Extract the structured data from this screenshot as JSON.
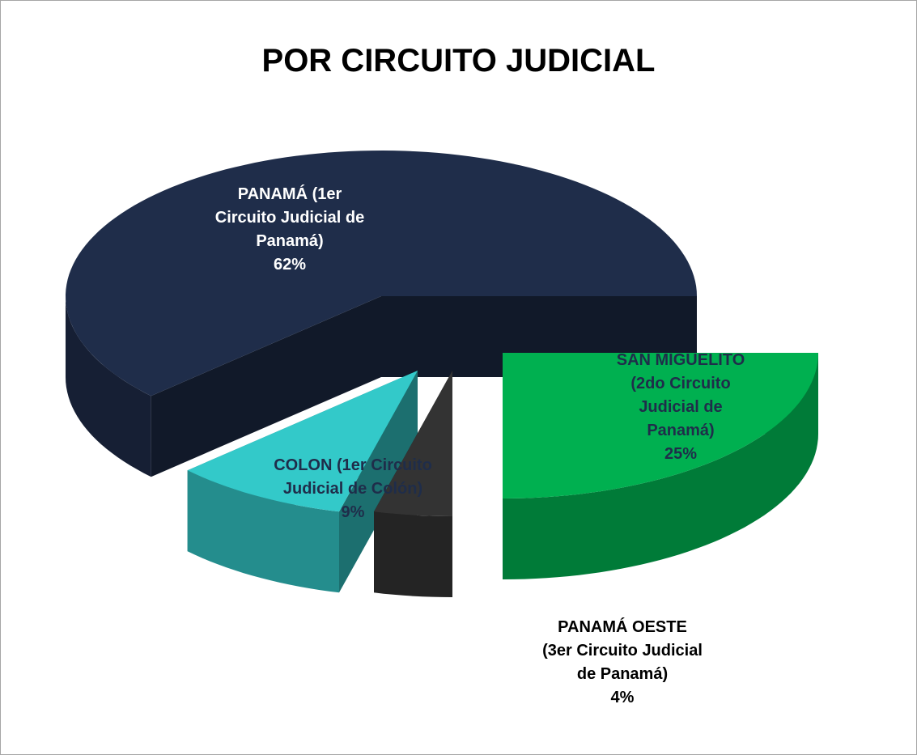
{
  "chart_data": {
    "type": "pie",
    "title": "POR CIRCUITO JUDICIAL",
    "categories": [
      "SAN MIGUELITO (2do Circuito Judicial de Panamá)",
      "PANAMÁ OESTE (3er Circuito Judicial de Panamá)",
      "COLON (1er Circuito Judicial de Colón)",
      "PANAMÁ (1er Circuito Judicial de Panamá)"
    ],
    "values": [
      25,
      4,
      9,
      62
    ],
    "value_labels": [
      "25%",
      "4%",
      "9%",
      "62%"
    ],
    "colors": [
      "#00b050",
      "#333333",
      "#33c9c9",
      "#1f2d4a"
    ]
  }
}
